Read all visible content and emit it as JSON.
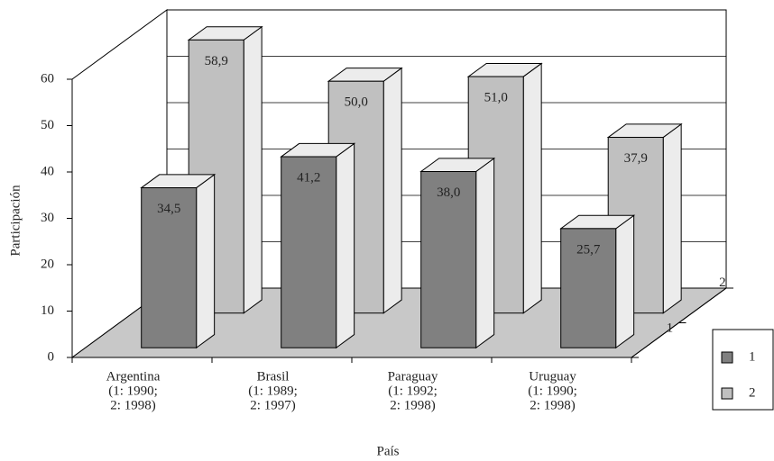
{
  "chart_data": {
    "type": "bar3d",
    "categories": [
      [
        "Argentina",
        "(1: 1990;",
        "2: 1998)"
      ],
      [
        "Brasil",
        "(1: 1989;",
        "2: 1997)"
      ],
      [
        "Paraguay",
        "(1: 1992;",
        "2: 1998)"
      ],
      [
        "Uruguay",
        "(1: 1990;",
        "2: 1998)"
      ]
    ],
    "series": [
      {
        "name": "1",
        "color": "#808080",
        "values": [
          34.5,
          41.2,
          38.0,
          25.7
        ],
        "value_labels": [
          "34,5",
          "41,2",
          "38,0",
          "25,7"
        ]
      },
      {
        "name": "2",
        "color": "#c0c0c0",
        "values": [
          58.9,
          50.0,
          51.0,
          37.9
        ],
        "value_labels": [
          "58,9",
          "50,0",
          "51,0",
          "37,9"
        ]
      }
    ],
    "ylim": [
      0,
      60
    ],
    "yticks": [
      0,
      10,
      20,
      30,
      40,
      50,
      60
    ],
    "y_label": "Participación",
    "x_label": "País",
    "grid": true,
    "legend": "right"
  }
}
